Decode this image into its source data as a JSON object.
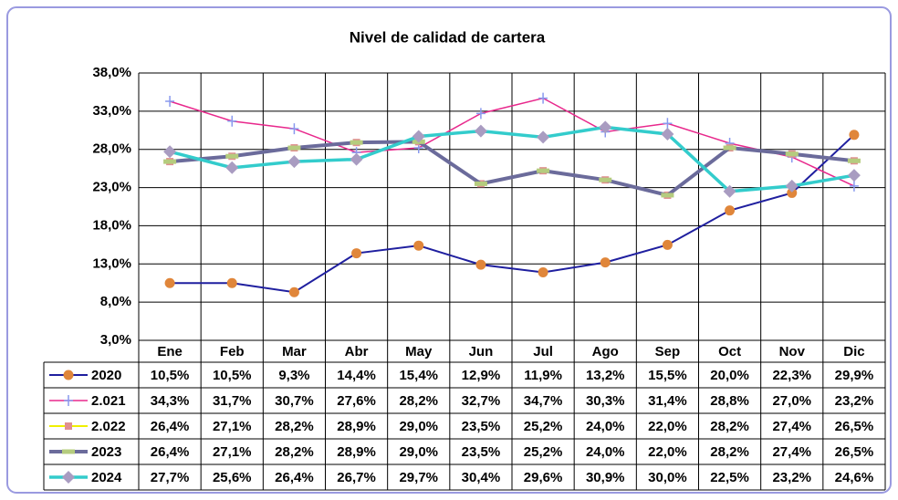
{
  "chart_data": {
    "type": "line",
    "title": "Nivel de calidad de cartera",
    "categories": [
      "Ene",
      "Feb",
      "Mar",
      "Abr",
      "May",
      "Jun",
      "Jul",
      "Ago",
      "Sep",
      "Oct",
      "Nov",
      "Dic"
    ],
    "ylim": [
      3,
      38
    ],
    "yticks": [
      {
        "value": 3,
        "label": "3,0%"
      },
      {
        "value": 8,
        "label": "8,0%"
      },
      {
        "value": 13,
        "label": "13,0%"
      },
      {
        "value": 18,
        "label": "18,0%"
      },
      {
        "value": 23,
        "label": "23,0%"
      },
      {
        "value": 28,
        "label": "28,0%"
      },
      {
        "value": 33,
        "label": "33,0%"
      },
      {
        "value": 38,
        "label": "38,0%"
      }
    ],
    "grid": true,
    "series": [
      {
        "name": "2020",
        "color": "#1f1f9f",
        "width": 2,
        "marker": "circle",
        "marker_color": "#e0863a",
        "values": [
          10.5,
          10.5,
          9.3,
          14.4,
          15.4,
          12.9,
          11.9,
          13.2,
          15.5,
          20.0,
          22.3,
          29.9
        ],
        "value_labels": [
          "10,5%",
          "10,5%",
          "9,3%",
          "14,4%",
          "15,4%",
          "12,9%",
          "11,9%",
          "13,2%",
          "15,5%",
          "20,0%",
          "22,3%",
          "29,9%"
        ]
      },
      {
        "name": "2.021",
        "color": "#e8288c",
        "width": 1.5,
        "marker": "plus",
        "marker_color": "#8899ee",
        "values": [
          34.3,
          31.7,
          30.7,
          27.6,
          28.2,
          32.7,
          34.7,
          30.3,
          31.4,
          28.8,
          27.0,
          23.2
        ],
        "value_labels": [
          "34,3%",
          "31,7%",
          "30,7%",
          "27,6%",
          "28,2%",
          "32,7%",
          "34,7%",
          "30,3%",
          "31,4%",
          "28,8%",
          "27,0%",
          "23,2%"
        ]
      },
      {
        "name": "2.022",
        "color": "#f0f000",
        "width": 2,
        "marker": "square",
        "marker_color": "#e09090",
        "values": [
          26.4,
          27.1,
          28.2,
          28.9,
          29.0,
          23.5,
          25.2,
          24.0,
          22.0,
          28.2,
          27.4,
          26.5
        ],
        "value_labels": [
          "26,4%",
          "27,1%",
          "28,2%",
          "28,9%",
          "29,0%",
          "23,5%",
          "25,2%",
          "24,0%",
          "22,0%",
          "28,2%",
          "27,4%",
          "26,5%"
        ]
      },
      {
        "name": "2023",
        "color": "#6b6b9b",
        "width": 4,
        "marker": "dash",
        "marker_color": "#b5cc7e",
        "values": [
          26.4,
          27.1,
          28.2,
          28.9,
          29.0,
          23.5,
          25.2,
          24.0,
          22.0,
          28.2,
          27.4,
          26.5
        ],
        "value_labels": [
          "26,4%",
          "27,1%",
          "28,2%",
          "28,9%",
          "29,0%",
          "23,5%",
          "25,2%",
          "24,0%",
          "22,0%",
          "28,2%",
          "27,4%",
          "26,5%"
        ]
      },
      {
        "name": "2024",
        "color": "#33cccc",
        "width": 3.5,
        "marker": "diamond",
        "marker_color": "#a99cc1",
        "values": [
          27.7,
          25.6,
          26.4,
          26.7,
          29.7,
          30.4,
          29.6,
          30.9,
          30.0,
          22.5,
          23.2,
          24.6
        ],
        "value_labels": [
          "27,7%",
          "25,6%",
          "26,4%",
          "26,7%",
          "29,7%",
          "30,4%",
          "29,6%",
          "30,9%",
          "30,0%",
          "22,5%",
          "23,2%",
          "24,6%"
        ]
      }
    ]
  }
}
